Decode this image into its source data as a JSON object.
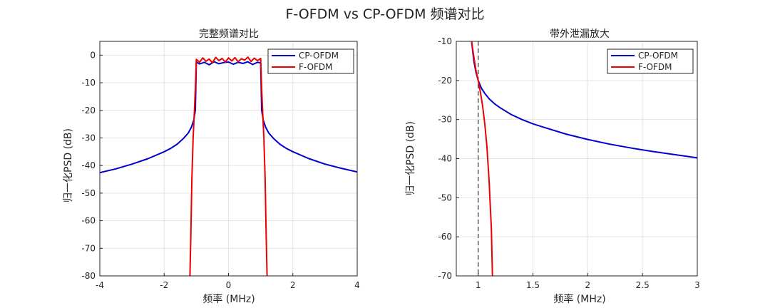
{
  "figure_title": "F-OFDM vs CP-OFDM 频谱对比",
  "chart_data": [
    {
      "type": "line",
      "title": "完整频谱对比",
      "xlabel": "频率 (MHz)",
      "ylabel": "归一化PSD (dB)",
      "xlim": [
        -4,
        4
      ],
      "ylim": [
        -80,
        5
      ],
      "xticks": [
        -4,
        -2,
        0,
        2,
        4
      ],
      "yticks": [
        0,
        -10,
        -20,
        -30,
        -40,
        -50,
        -60,
        -70,
        -80
      ],
      "xtick_labels": [
        "-4",
        "-2",
        "0",
        "2",
        "4"
      ],
      "ytick_labels": [
        "0",
        "-10",
        "-20",
        "-30",
        "-40",
        "-50",
        "-60",
        "-70",
        "-80"
      ],
      "grid": true,
      "legend_position": "top-right",
      "series": [
        {
          "name": "CP-OFDM",
          "color": "#0000cc",
          "x": [
            -4,
            -3.5,
            -3,
            -2.5,
            -2,
            -1.8,
            -1.6,
            -1.4,
            -1.25,
            -1.15,
            -1.08,
            -1.03,
            -1.0,
            -0.9,
            -0.75,
            -0.6,
            -0.45,
            -0.3,
            -0.15,
            0,
            0.15,
            0.3,
            0.45,
            0.6,
            0.75,
            0.9,
            1.0,
            1.03,
            1.08,
            1.15,
            1.25,
            1.4,
            1.6,
            1.8,
            2,
            2.5,
            3,
            3.5,
            4
          ],
          "y": [
            -42.6,
            -41.2,
            -39.5,
            -37.5,
            -35.0,
            -33.8,
            -32.3,
            -30.2,
            -28.2,
            -26.0,
            -23.5,
            -20.0,
            -2.5,
            -3.2,
            -2.6,
            -3.5,
            -2.4,
            -3.1,
            -2.7,
            -2.5,
            -3.3,
            -2.6,
            -3.0,
            -2.4,
            -3.4,
            -2.6,
            -2.8,
            -20.0,
            -23.5,
            -26.0,
            -28.2,
            -30.2,
            -32.3,
            -33.8,
            -35.0,
            -37.5,
            -39.5,
            -41.0,
            -42.3
          ]
        },
        {
          "name": "F-OFDM",
          "color": "#ee0000",
          "x": [
            -1.2,
            -1.17,
            -1.14,
            -1.1,
            -1.06,
            -1.03,
            -1.0,
            -0.9,
            -0.8,
            -0.7,
            -0.6,
            -0.5,
            -0.4,
            -0.3,
            -0.2,
            -0.1,
            0,
            0.1,
            0.2,
            0.3,
            0.4,
            0.5,
            0.6,
            0.7,
            0.8,
            0.9,
            1.0,
            1.03,
            1.06,
            1.1,
            1.14,
            1.17,
            1.2
          ],
          "y": [
            -80,
            -65,
            -45,
            -30,
            -20,
            -12,
            -1.5,
            -2.6,
            -1.0,
            -2.2,
            -1.4,
            -2.8,
            -0.8,
            -2.0,
            -1.2,
            -2.5,
            -1.0,
            -2.1,
            -0.9,
            -2.4,
            -1.3,
            -1.8,
            -0.7,
            -2.3,
            -1.1,
            -2.0,
            -1.2,
            -12,
            -20,
            -30,
            -45,
            -65,
            -80
          ]
        }
      ]
    },
    {
      "type": "line",
      "title": "带外泄漏放大",
      "xlabel": "频率 (MHz)",
      "ylabel": "归一化PSD (dB)",
      "xlim": [
        0.8,
        3
      ],
      "ylim": [
        -70,
        -10
      ],
      "xticks": [
        1,
        1.5,
        2,
        2.5,
        3
      ],
      "yticks": [
        -10,
        -20,
        -30,
        -40,
        -50,
        -60,
        -70
      ],
      "xtick_labels": [
        "1",
        "1.5",
        "2",
        "2.5",
        "3"
      ],
      "ytick_labels": [
        "-10",
        "-20",
        "-30",
        "-40",
        "-50",
        "-60",
        "-70"
      ],
      "grid": true,
      "legend_position": "top-right",
      "reference_line": {
        "x": 1,
        "style": "dashed",
        "color": "#444444"
      },
      "series": [
        {
          "name": "CP-OFDM",
          "color": "#0000cc",
          "x": [
            0.94,
            0.96,
            0.98,
            1.0,
            1.03,
            1.06,
            1.1,
            1.15,
            1.2,
            1.3,
            1.4,
            1.5,
            1.6,
            1.8,
            2.0,
            2.2,
            2.4,
            2.6,
            2.8,
            3.0
          ],
          "y": [
            -10,
            -15,
            -18,
            -20.0,
            -22.0,
            -23.3,
            -24.7,
            -26.0,
            -27.0,
            -28.7,
            -30.0,
            -31.1,
            -32.0,
            -33.7,
            -35.1,
            -36.3,
            -37.3,
            -38.2,
            -39.0,
            -39.8
          ]
        },
        {
          "name": "F-OFDM",
          "color": "#ee0000",
          "x": [
            0.94,
            0.96,
            0.98,
            1.0,
            1.02,
            1.04,
            1.06,
            1.08,
            1.1,
            1.12,
            1.13
          ],
          "y": [
            -10,
            -14,
            -17.5,
            -20,
            -23,
            -26.5,
            -31,
            -37,
            -46,
            -58,
            -70
          ]
        }
      ]
    }
  ]
}
